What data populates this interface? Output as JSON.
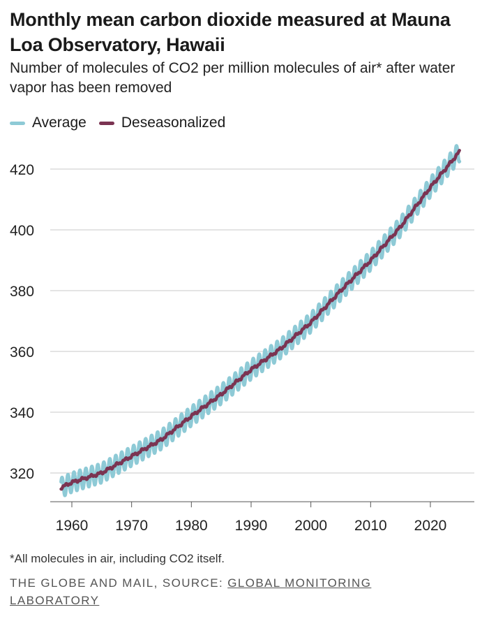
{
  "chart_data": {
    "type": "line",
    "title": "Monthly mean carbon dioxide measured at Mauna Loa Observatory, Hawaii",
    "subtitle": "Number of molecules of CO2 per million molecules of air* after water vapor has been removed",
    "xlabel": "",
    "ylabel": "",
    "xlim": [
      1957,
      2026
    ],
    "ylim": [
      311,
      428
    ],
    "x_ticks": [
      1960,
      1970,
      1980,
      1990,
      2000,
      2010,
      2020
    ],
    "y_ticks": [
      320,
      340,
      360,
      380,
      400,
      420
    ],
    "grid": "horizontal",
    "legend_position": "top-left",
    "series": [
      {
        "name": "Average",
        "color": "#8ecad6",
        "seasonal_amplitude_ppm": 3.2,
        "description_values": "monthly mean (deseasonalized trend plus seasonal cycle)"
      },
      {
        "name": "Deseasonalized",
        "color": "#7b3452",
        "x": [
          1958,
          1960,
          1965,
          1970,
          1975,
          1980,
          1985,
          1990,
          1995,
          2000,
          2005,
          2010,
          2015,
          2020,
          2025
        ],
        "values": [
          315,
          316.9,
          320,
          325.5,
          331,
          338.7,
          345.9,
          354,
          361,
          369.5,
          380,
          389.9,
          401,
          414,
          426
        ]
      }
    ]
  },
  "legend": {
    "items": [
      {
        "label": "Average",
        "color": "#8ecad6"
      },
      {
        "label": "Deseasonalized",
        "color": "#7b3452"
      }
    ]
  },
  "footnote": "*All molecules in air, including CO2 itself.",
  "source": {
    "prefix": "THE GLOBE AND MAIL, SOURCE: ",
    "link_text": "GLOBAL MONITORING LABORATORY"
  }
}
